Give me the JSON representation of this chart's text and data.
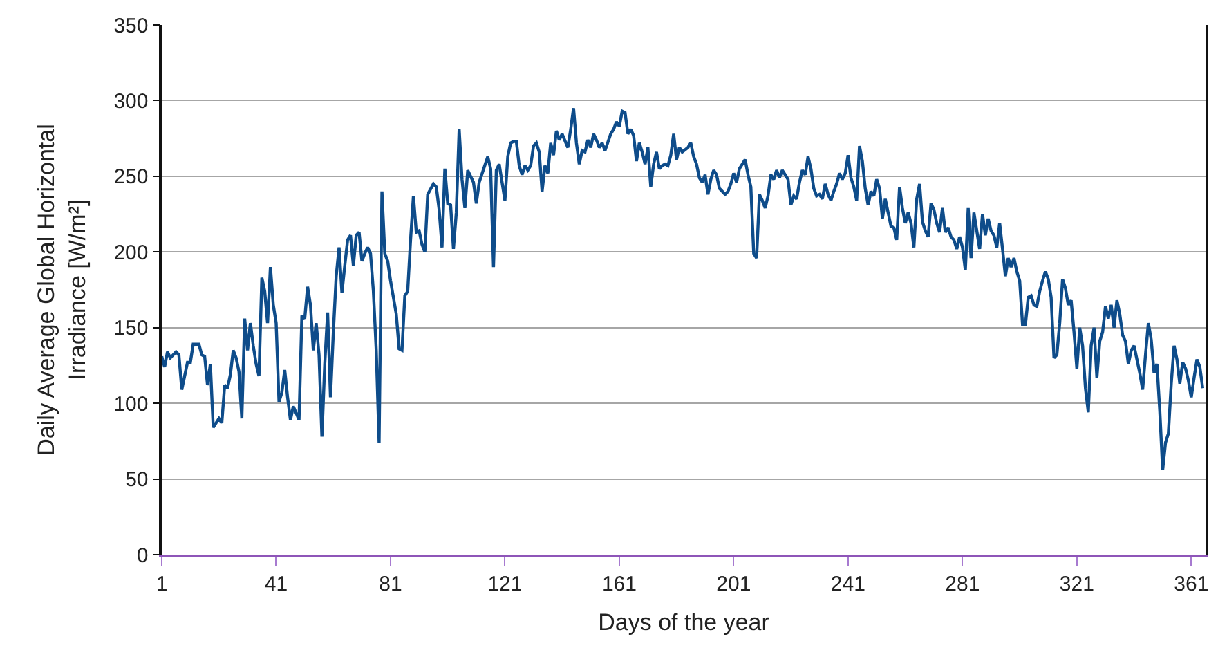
{
  "chart_data": {
    "type": "line",
    "xlabel": "Days of the year",
    "ylabel": "Daily Average Global Horizontal Irradiance [W/m²]",
    "color": "#0e4c8a",
    "line_style": "solid",
    "grid": "y",
    "xlim": [
      1,
      366
    ],
    "xticks": [
      1,
      41,
      81,
      121,
      161,
      201,
      241,
      281,
      321,
      361
    ],
    "ylim": [
      0,
      350
    ],
    "yticks": [
      0,
      50,
      100,
      150,
      200,
      250,
      300,
      350
    ],
    "x": [
      1,
      2,
      3,
      4,
      6,
      7,
      8,
      10,
      11,
      12,
      14,
      15,
      16,
      17,
      18,
      19,
      21,
      22,
      23,
      24,
      25,
      26,
      27,
      28,
      29,
      30,
      31,
      32,
      33,
      34,
      35,
      36,
      37,
      38,
      39,
      40,
      41,
      42,
      43,
      44,
      45,
      46,
      47,
      49,
      50,
      51,
      52,
      53,
      54,
      55,
      56,
      57,
      58,
      59,
      60,
      61,
      62,
      63,
      64,
      65,
      66,
      67,
      68,
      69,
      70,
      71,
      72,
      73,
      74,
      75,
      76,
      77,
      78,
      79,
      80,
      81,
      83,
      84,
      85,
      86,
      87,
      88,
      89,
      90,
      91,
      92,
      93,
      94,
      96,
      97,
      98,
      99,
      100,
      101,
      102,
      103,
      104,
      105,
      106,
      107,
      108,
      110,
      111,
      112,
      115,
      116,
      117,
      118,
      119,
      121,
      122,
      123,
      124,
      125,
      126,
      127,
      128,
      129,
      130,
      131,
      132,
      133,
      134,
      135,
      136,
      137,
      138,
      139,
      140,
      141,
      143,
      144,
      145,
      146,
      147,
      148,
      149,
      150,
      151,
      152,
      153,
      154,
      155,
      156,
      158,
      159,
      160,
      161,
      162,
      163,
      164,
      165,
      166,
      167,
      168,
      169,
      170,
      171,
      172,
      173,
      174,
      175,
      176,
      177,
      178,
      179,
      180,
      181,
      182,
      183,
      185,
      186,
      187,
      188,
      189,
      190,
      191,
      192,
      193,
      194,
      195,
      196,
      198,
      199,
      200,
      201,
      202,
      203,
      204,
      205,
      206,
      207,
      208,
      209,
      210,
      211,
      212,
      213,
      214,
      215,
      216,
      217,
      218,
      219,
      220,
      221,
      222,
      223,
      224,
      225,
      226,
      227,
      228,
      229,
      230,
      231,
      232,
      233,
      234,
      235,
      236,
      237,
      238,
      239,
      240,
      241,
      242,
      243,
      244,
      245,
      246,
      247,
      248,
      249,
      250,
      251,
      252,
      253,
      254,
      255,
      256,
      257,
      258,
      259,
      260,
      261,
      262,
      263,
      264,
      265,
      266,
      267,
      268,
      269,
      270,
      271,
      272,
      273,
      274,
      275,
      276,
      277,
      278,
      279,
      280,
      281,
      282,
      283,
      284,
      285,
      286,
      287,
      288,
      289,
      290,
      291,
      292,
      293,
      294,
      295,
      296,
      297,
      298,
      299,
      300,
      301,
      302,
      303,
      304,
      305,
      306,
      307,
      308,
      309,
      310,
      311,
      312,
      313,
      314,
      315,
      316,
      317,
      318,
      319,
      320,
      321,
      322,
      323,
      324,
      325,
      326,
      327,
      328,
      329,
      330,
      331,
      332,
      333,
      334,
      335,
      336,
      337,
      338,
      339,
      340,
      341,
      342,
      343,
      344,
      345,
      346,
      347,
      348,
      349,
      350,
      351,
      352,
      353,
      354,
      355,
      356,
      357,
      358,
      359,
      360,
      361,
      362,
      363,
      364,
      365
    ],
    "values": [
      131,
      124,
      134,
      130,
      134,
      132,
      109,
      127,
      127,
      139,
      139,
      132,
      131,
      112,
      126,
      84,
      90,
      87,
      112,
      110,
      119,
      135,
      130,
      121,
      90,
      156,
      135,
      153,
      138,
      126,
      118,
      183,
      174,
      153,
      190,
      165,
      153,
      101,
      107,
      122,
      104,
      89,
      98,
      89,
      158,
      156,
      177,
      165,
      135,
      153,
      132,
      78,
      126,
      160,
      104,
      147,
      184,
      203,
      173,
      191,
      208,
      211,
      191,
      211,
      213,
      194,
      199,
      203,
      199,
      174,
      135,
      74,
      240,
      199,
      194,
      181,
      159,
      136,
      135,
      171,
      174,
      208,
      237,
      213,
      214,
      205,
      200,
      238,
      245,
      243,
      228,
      203,
      255,
      232,
      231,
      202,
      226,
      281,
      248,
      229,
      254,
      246,
      232,
      246,
      263,
      255,
      190,
      254,
      258,
      234,
      263,
      272,
      273,
      273,
      257,
      251,
      257,
      254,
      257,
      270,
      272,
      266,
      240,
      257,
      252,
      272,
      264,
      280,
      274,
      278,
      269,
      281,
      295,
      272,
      258,
      267,
      266,
      274,
      269,
      278,
      274,
      269,
      272,
      267,
      278,
      281,
      286,
      283,
      293,
      292,
      278,
      281,
      277,
      260,
      272,
      266,
      258,
      269,
      243,
      258,
      266,
      255,
      257,
      258,
      257,
      264,
      278,
      261,
      269,
      266,
      269,
      272,
      263,
      258,
      249,
      246,
      251,
      238,
      248,
      254,
      251,
      242,
      238,
      240,
      245,
      252,
      246,
      255,
      258,
      261,
      251,
      243,
      199,
      196,
      238,
      234,
      229,
      237,
      251,
      248,
      254,
      249,
      254,
      251,
      248,
      231,
      237,
      235,
      246,
      254,
      251,
      263,
      255,
      242,
      237,
      238,
      235,
      245,
      238,
      234,
      240,
      245,
      252,
      248,
      252,
      264,
      249,
      243,
      234,
      270,
      260,
      242,
      231,
      240,
      237,
      248,
      242,
      222,
      235,
      226,
      217,
      216,
      208,
      243,
      229,
      219,
      226,
      219,
      203,
      235,
      245,
      220,
      214,
      210,
      232,
      228,
      219,
      213,
      229,
      213,
      216,
      210,
      208,
      202,
      210,
      203,
      188,
      229,
      196,
      226,
      214,
      202,
      225,
      211,
      222,
      214,
      211,
      203,
      219,
      202,
      184,
      196,
      190,
      196,
      187,
      181,
      152,
      152,
      170,
      171,
      165,
      164,
      174,
      181,
      187,
      182,
      170,
      130,
      132,
      153,
      182,
      176,
      165,
      168,
      147,
      123,
      150,
      138,
      110,
      94,
      138,
      150,
      117,
      141,
      147,
      164,
      156,
      165,
      150,
      168,
      159,
      145,
      141,
      126,
      135,
      138,
      129,
      120,
      109,
      132,
      153,
      142,
      120,
      126,
      95,
      56,
      74,
      80,
      113,
      138,
      129,
      113,
      127,
      123,
      115,
      104,
      117,
      129,
      124,
      110
    ]
  }
}
